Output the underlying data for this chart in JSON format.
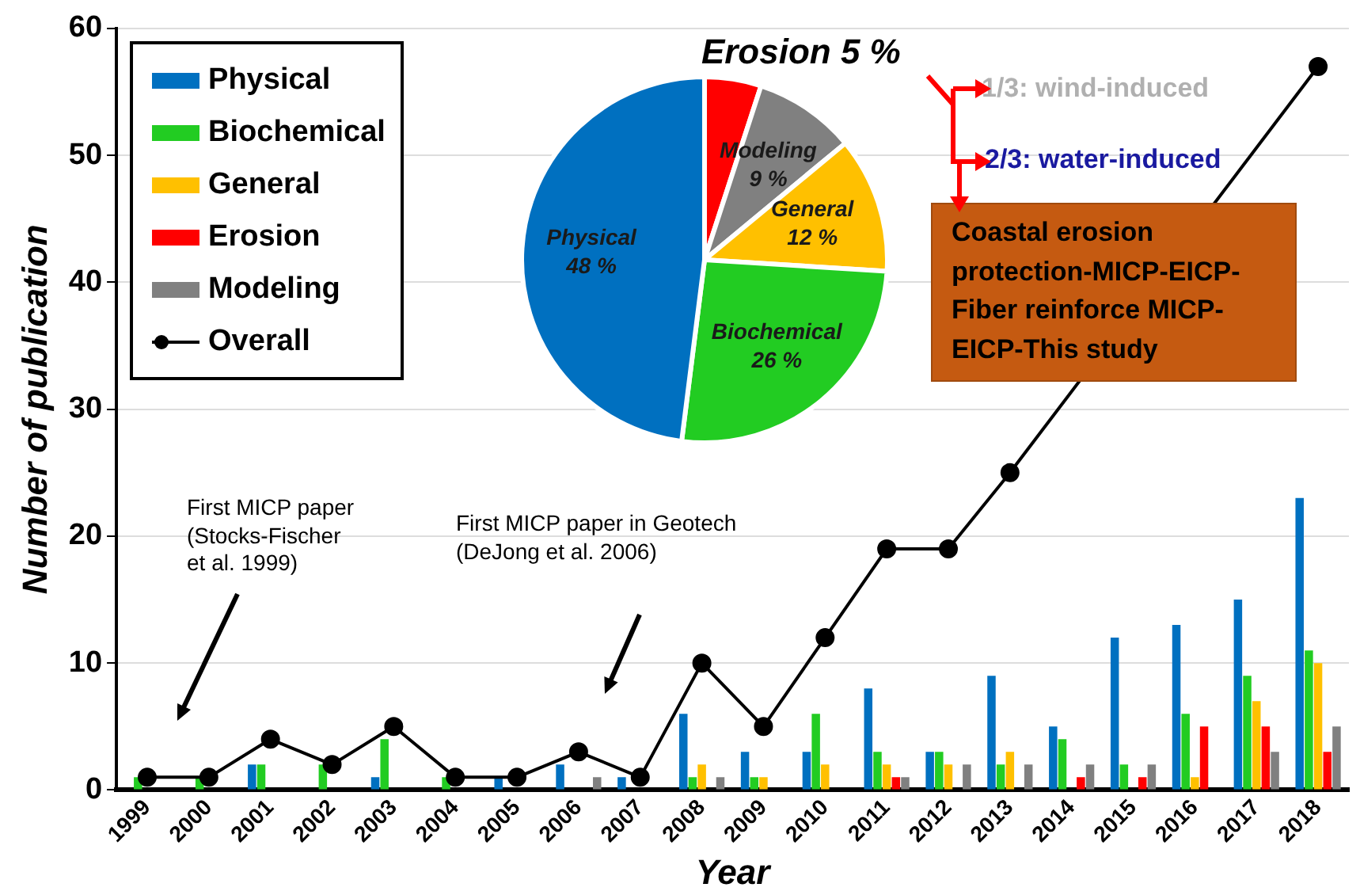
{
  "chart_data": [
    {
      "type": "bar",
      "categories": [
        "1999",
        "2000",
        "2001",
        "2002",
        "2003",
        "2004",
        "2005",
        "2006",
        "2007",
        "2008",
        "2009",
        "2010",
        "2011",
        "2012",
        "2013",
        "2014",
        "2015",
        "2016",
        "2017",
        "2018"
      ],
      "series": [
        {
          "name": "Physical",
          "color": "#0070c0",
          "values": [
            0,
            0,
            2,
            0,
            1,
            0,
            1,
            2,
            1,
            6,
            3,
            3,
            8,
            3,
            9,
            5,
            12,
            13,
            15,
            23
          ]
        },
        {
          "name": "Biochemical",
          "color": "#22cc22",
          "values": [
            1,
            1,
            2,
            2,
            4,
            1,
            0,
            0,
            0,
            1,
            1,
            6,
            3,
            3,
            2,
            4,
            2,
            6,
            9,
            11
          ]
        },
        {
          "name": "General",
          "color": "#ffc000",
          "values": [
            0,
            0,
            0,
            0,
            0,
            0,
            0,
            0,
            0,
            2,
            1,
            2,
            2,
            2,
            3,
            0,
            0,
            1,
            7,
            10
          ]
        },
        {
          "name": "Erosion",
          "color": "#ff0000",
          "values": [
            0,
            0,
            0,
            0,
            0,
            0,
            0,
            0,
            0,
            0,
            0,
            0,
            1,
            0,
            0,
            1,
            1,
            5,
            5,
            3
          ]
        },
        {
          "name": "Modeling",
          "color": "#808080",
          "values": [
            0,
            0,
            0,
            0,
            0,
            0,
            0,
            1,
            0,
            1,
            0,
            0,
            1,
            2,
            2,
            2,
            2,
            0,
            3,
            5
          ]
        },
        {
          "name": "Overall",
          "color": "#000000",
          "type": "line",
          "values": [
            1,
            1,
            4,
            2,
            5,
            1,
            1,
            3,
            1,
            10,
            5,
            12,
            19,
            19,
            25,
            null,
            null,
            null,
            null,
            57
          ]
        }
      ],
      "ylim": [
        0,
        60
      ],
      "yticks": [
        0,
        10,
        20,
        30,
        40,
        50,
        60
      ],
      "xlabel": "Year",
      "ylabel": "Number of publication",
      "grid": "y",
      "legend": "top left",
      "marker": "circle",
      "annotations": [
        "First MICP paper\n(Stocks-Fischer\net al. 1999)",
        "First MICP paper in Geotech\n(DeJong et al. 2006)"
      ]
    },
    {
      "type": "pie",
      "categories": [
        "Erosion",
        "Modeling",
        "General",
        "Biochemical",
        "Physical"
      ],
      "values": [
        5,
        9,
        12,
        26,
        48
      ],
      "colors": [
        "#ff0000",
        "#808080",
        "#ffc000",
        "#22cc22",
        "#0070c0"
      ],
      "value_labels": [
        "5 %",
        "9 %",
        "12 %",
        "26 %",
        "48 %"
      ],
      "annotations": [
        "1/3: wind-induced",
        "2/3: water-induced",
        "Coastal erosion protection-MICP-EICP-Fiber reinforce MICP-EICP-This study"
      ]
    }
  ]
}
